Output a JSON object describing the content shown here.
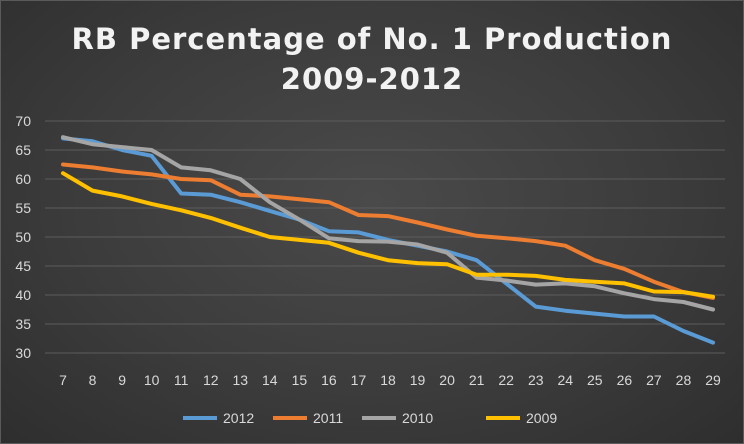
{
  "chart_data": {
    "type": "line",
    "title_line1": "RB Percentage of No. 1 Production",
    "title_line2": "2009-2012",
    "xlabel": "",
    "ylabel": "",
    "x": [
      7,
      8,
      9,
      10,
      11,
      12,
      13,
      14,
      15,
      16,
      17,
      18,
      19,
      20,
      21,
      22,
      23,
      24,
      25,
      26,
      27,
      28,
      29
    ],
    "ylim": [
      30,
      70
    ],
    "yticks": [
      30,
      35,
      40,
      45,
      50,
      55,
      60,
      65,
      70
    ],
    "grid": true,
    "legend_position": "bottom",
    "series": [
      {
        "name": "2012",
        "color": "#5b9bd5",
        "values": [
          67,
          66.5,
          65,
          64,
          57.5,
          57.3,
          56,
          54.5,
          53,
          51,
          50.8,
          49.5,
          48.5,
          47.5,
          46,
          42,
          38,
          37.3,
          36.8,
          36.3,
          36.3,
          33.8,
          31.8
        ]
      },
      {
        "name": "2011",
        "color": "#ed7d31",
        "values": [
          62.5,
          62,
          61.3,
          60.8,
          60,
          59.8,
          57.3,
          57,
          56.5,
          56,
          53.8,
          53.6,
          52.5,
          51.3,
          50.2,
          49.8,
          49.3,
          48.5,
          46,
          44.5,
          42.3,
          40.5,
          39.5
        ]
      },
      {
        "name": "2010",
        "color": "#a5a5a5",
        "values": [
          67.2,
          66,
          65.5,
          65,
          62,
          61.5,
          60,
          56,
          53,
          49.8,
          49.3,
          49.2,
          48.7,
          47.3,
          43,
          42.5,
          41.8,
          42,
          41.5,
          40.3,
          39.3,
          38.8,
          37.5
        ]
      },
      {
        "name": "2009",
        "color": "#ffc000",
        "values": [
          61,
          58,
          57,
          55.7,
          54.6,
          53.3,
          51.6,
          50,
          49.5,
          49,
          47.3,
          46,
          45.5,
          45.3,
          43.5,
          43.5,
          43.3,
          42.6,
          42.3,
          42,
          40.6,
          40.5,
          39.7
        ]
      }
    ]
  }
}
